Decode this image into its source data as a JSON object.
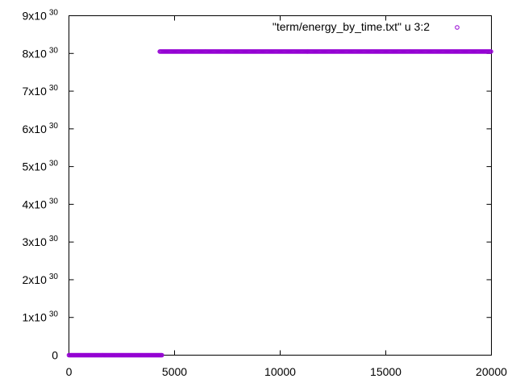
{
  "chart_data": {
    "type": "scatter",
    "title": "",
    "xlabel": "",
    "ylabel": "",
    "xlim": [
      0,
      20000
    ],
    "ylim": [
      0,
      9e+30
    ],
    "grid": false,
    "legend_position": "top-right",
    "x_ticks": [
      {
        "value": 0,
        "label": "0"
      },
      {
        "value": 5000,
        "label": "5000"
      },
      {
        "value": 10000,
        "label": "10000"
      },
      {
        "value": 15000,
        "label": "15000"
      },
      {
        "value": 20000,
        "label": "20000"
      }
    ],
    "y_ticks": [
      {
        "value": 0,
        "mant": "0",
        "exp": ""
      },
      {
        "value": 1e+30,
        "mant": "1x10",
        "exp": "30"
      },
      {
        "value": 2e+30,
        "mant": "2x10",
        "exp": "30"
      },
      {
        "value": 3e+30,
        "mant": "3x10",
        "exp": "30"
      },
      {
        "value": 4e+30,
        "mant": "4x10",
        "exp": "30"
      },
      {
        "value": 5e+30,
        "mant": "5x10",
        "exp": "30"
      },
      {
        "value": 6e+30,
        "mant": "6x10",
        "exp": "30"
      },
      {
        "value": 7e+30,
        "mant": "7x10",
        "exp": "30"
      },
      {
        "value": 8e+30,
        "mant": "8x10",
        "exp": "30"
      },
      {
        "value": 9e+30,
        "mant": "9x10",
        "exp": "30"
      }
    ],
    "series": [
      {
        "name": "\"term/energy_by_time.txt\" u 3:2",
        "color": "#9400d3",
        "marker": "open-circle",
        "segments": [
          {
            "x_start": 0,
            "x_end": 4400,
            "y": 0
          },
          {
            "x_start": 4300,
            "x_end": 20000,
            "y": 8.05e+30
          }
        ]
      }
    ]
  }
}
